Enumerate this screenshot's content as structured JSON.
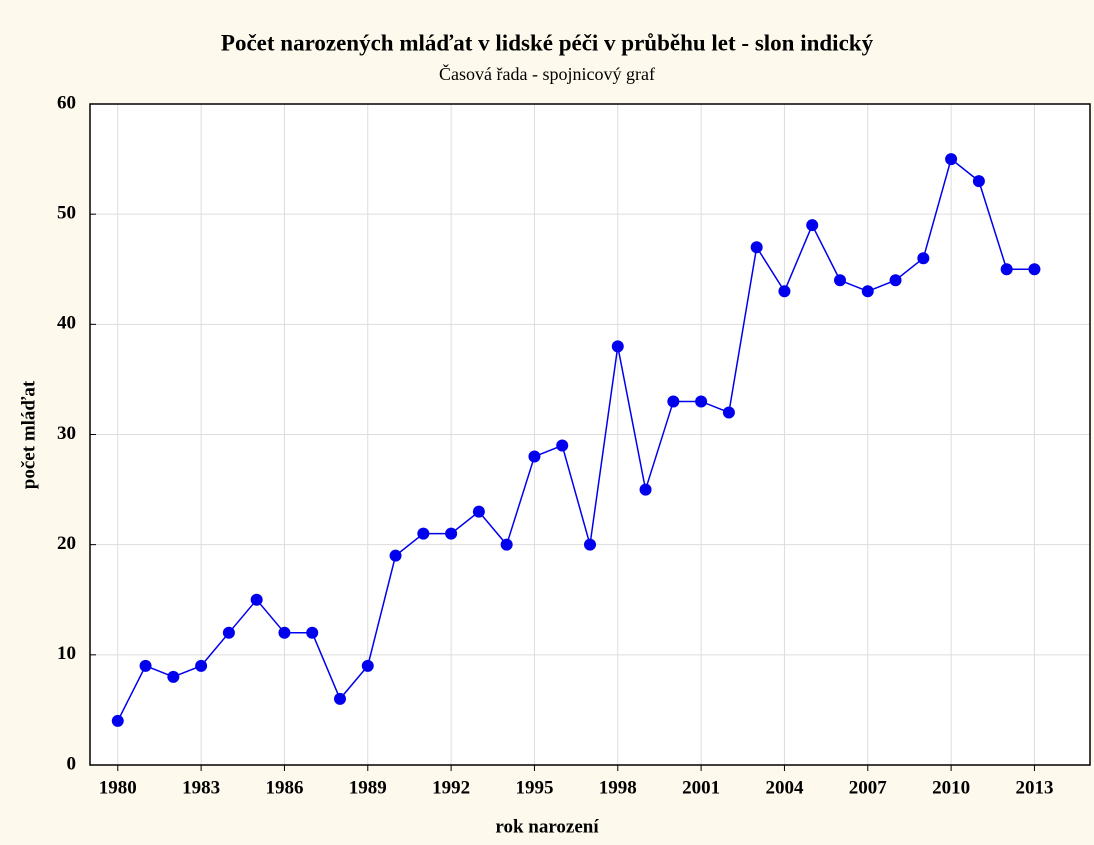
{
  "chart_data": {
    "type": "line",
    "title": "Počet narozených mláďat v lidské péči v průběhu let - slon indický",
    "subtitle": "Časová řada - spojnicový graf",
    "xlabel": "rok narození",
    "ylabel": "počet mláďat",
    "x": [
      1980,
      1981,
      1982,
      1983,
      1984,
      1985,
      1986,
      1987,
      1988,
      1989,
      1990,
      1991,
      1992,
      1993,
      1994,
      1995,
      1996,
      1997,
      1998,
      1999,
      2000,
      2001,
      2002,
      2003,
      2004,
      2005,
      2006,
      2007,
      2008,
      2009,
      2010,
      2011,
      2012,
      2013
    ],
    "series": [
      {
        "color": "#0000ee",
        "values": [
          4,
          9,
          8,
          9,
          12,
          15,
          12,
          12,
          6,
          9,
          19,
          21,
          21,
          23,
          20,
          28,
          29,
          20,
          38,
          25,
          33,
          33,
          32,
          47,
          43,
          49,
          44,
          43,
          44,
          46,
          55,
          53,
          45,
          45
        ]
      }
    ],
    "xlim": [
      1979,
      2015
    ],
    "xticks": [
      1980,
      1983,
      1986,
      1989,
      1992,
      1995,
      1998,
      2001,
      2004,
      2007,
      2010,
      2013
    ],
    "ylim": [
      0,
      60
    ],
    "yticks": [
      0,
      10,
      20,
      30,
      40,
      50,
      60
    ],
    "grid": true
  }
}
